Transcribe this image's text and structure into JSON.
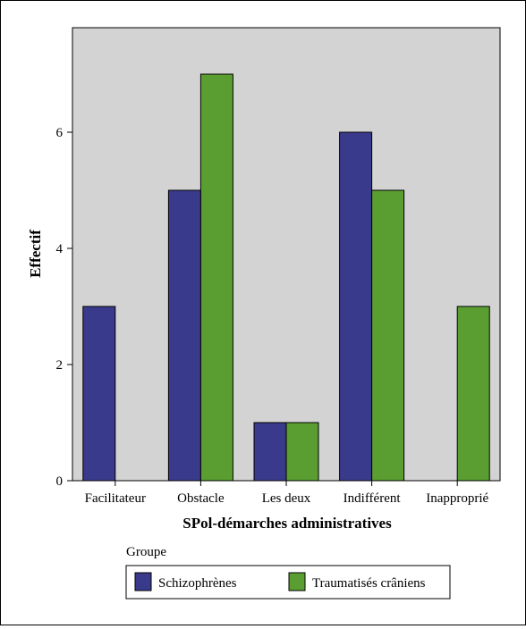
{
  "chart_data": {
    "type": "bar",
    "xlabel": "SPol-démarches administratives",
    "ylabel": "Effectif",
    "categories": [
      "Facilitateur",
      "Obstacle",
      "Les deux",
      "Indifférent",
      "Inapproprié"
    ],
    "series": [
      {
        "name": "Schizophrènes",
        "values": [
          3,
          5,
          1,
          6,
          0
        ],
        "color": "#3a3a8c"
      },
      {
        "name": "Traumatisés crâniens",
        "values": [
          0,
          7,
          1,
          5,
          3
        ],
        "color": "#5a9e32"
      }
    ],
    "ylim": [
      0,
      7.8
    ],
    "yticks": [
      "0",
      "2",
      "4",
      "6"
    ],
    "plot_background": "#d3d3d3",
    "grid": false,
    "legend": {
      "title": "Groupe",
      "placement": "bottom"
    }
  }
}
